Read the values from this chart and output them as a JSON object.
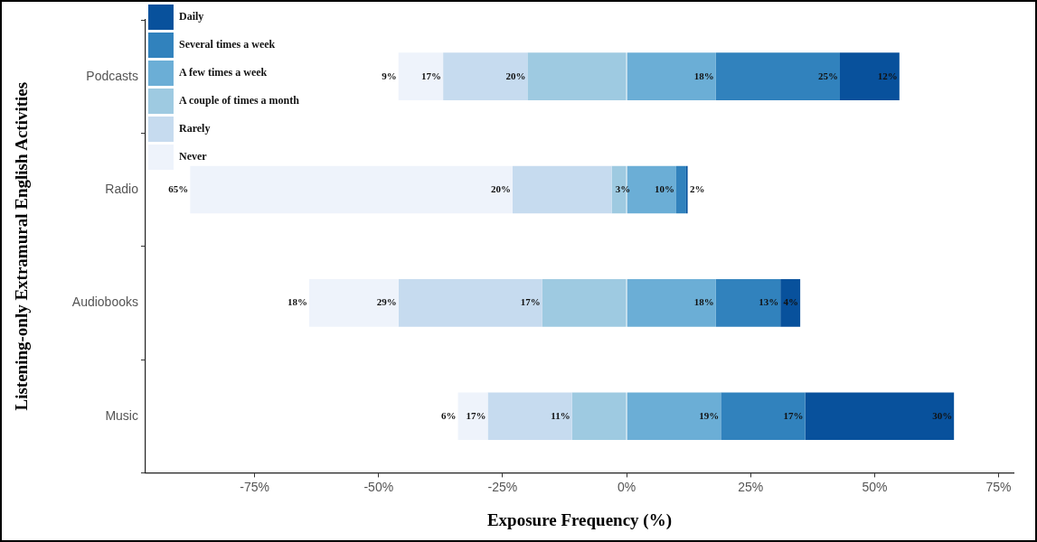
{
  "chart_data": {
    "type": "bar",
    "orientation": "horizontal",
    "xlabel": "Exposure Frequency (%)",
    "ylabel": "Listening-only Extramural English Activities",
    "categories": [
      "Podcasts",
      "Radio",
      "Audiobooks",
      "Music"
    ],
    "series": [
      {
        "name": "Never",
        "color": "#eef3fb",
        "base": [
          -46,
          -88,
          -64,
          -34
        ],
        "values": [
          9,
          65,
          18,
          6
        ],
        "value_labels": [
          "9%",
          "65%",
          "18%",
          "6%"
        ]
      },
      {
        "name": "Rarely",
        "color": "#c6dbef",
        "base": [
          -37,
          -23,
          -46,
          -28
        ],
        "values": [
          17,
          20,
          29,
          17
        ],
        "value_labels": [
          "17%",
          "20%",
          "29%",
          "17%"
        ]
      },
      {
        "name": "A couple of times a month",
        "color": "#9ecae1",
        "base": [
          -20,
          -3,
          -17,
          -11
        ],
        "values": [
          20,
          3,
          17,
          11
        ],
        "value_labels": [
          "20%",
          "3%",
          "17%",
          "11%"
        ]
      },
      {
        "name": "A few times a week",
        "color": "#6baed6",
        "base": [
          0,
          0,
          0,
          0
        ],
        "values": [
          18,
          10,
          18,
          19
        ],
        "value_labels": [
          "18%",
          "10%",
          "18%",
          "19%"
        ]
      },
      {
        "name": "Several times a week",
        "color": "#3182bd",
        "base": [
          18,
          10,
          18,
          19
        ],
        "values": [
          25,
          2,
          13,
          17
        ],
        "value_labels": [
          "25%",
          "2%",
          "13%",
          "17%"
        ]
      },
      {
        "name": "Daily",
        "color": "#08519c",
        "base": [
          43,
          12,
          31,
          36
        ],
        "values": [
          12,
          0.3,
          4,
          30
        ],
        "value_labels": [
          "12%",
          null,
          "4%",
          "30%"
        ]
      }
    ],
    "xlim": [
      -97,
      78
    ],
    "xticks": [
      {
        "value": -75,
        "label": "-75%"
      },
      {
        "value": -50,
        "label": "-50%"
      },
      {
        "value": -25,
        "label": "-25%"
      },
      {
        "value": 0,
        "label": "0%"
      },
      {
        "value": 25,
        "label": "25%"
      },
      {
        "value": 50,
        "label": "50%"
      },
      {
        "value": 75,
        "label": "75%"
      }
    ],
    "grid": false,
    "legend": "top left"
  }
}
